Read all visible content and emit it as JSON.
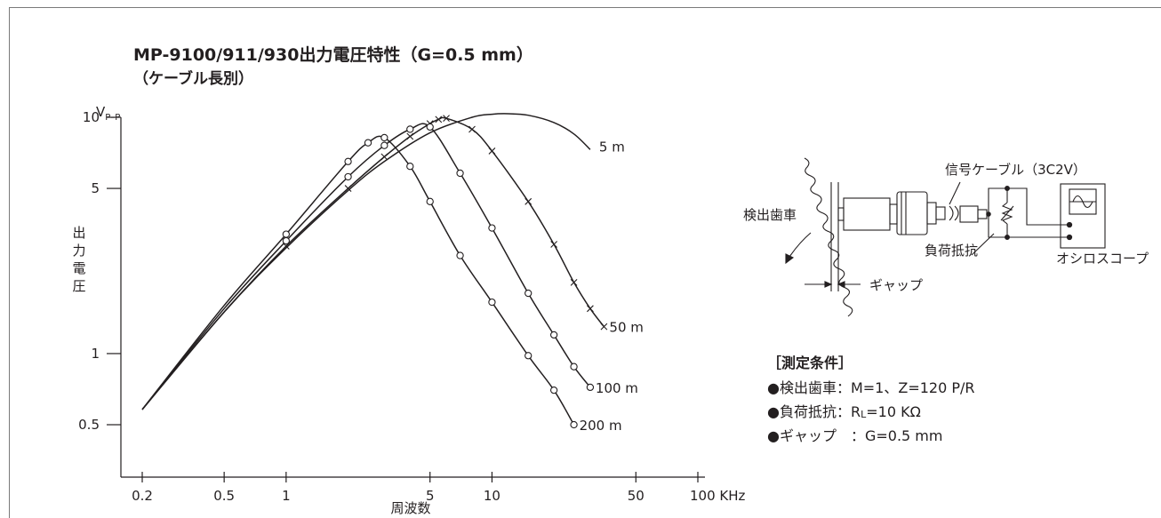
{
  "chart_data": {
    "type": "line",
    "title": "MP-9100/911/930出力電圧特性（G=0.5 mm）",
    "subtitle": "（ケーブル長別）",
    "ylabel": "出力電圧",
    "ylabel_unit": "V",
    "ylabel_unit_sub": "P–P",
    "xlabel": "周波数",
    "x_scale": "log",
    "y_scale": "log",
    "xlim": [
      0.2,
      100
    ],
    "ylim": [
      0.3,
      10
    ],
    "x_ticks": [
      {
        "v": 0.2,
        "label": "0.2"
      },
      {
        "v": 0.5,
        "label": "0.5"
      },
      {
        "v": 1,
        "label": "1"
      },
      {
        "v": 5,
        "label": "5"
      },
      {
        "v": 10,
        "label": "10"
      },
      {
        "v": 50,
        "label": "50"
      },
      {
        "v": 100,
        "label": "100 KHz"
      }
    ],
    "y_ticks": [
      {
        "v": 10,
        "label": "10"
      },
      {
        "v": 5,
        "label": "5"
      },
      {
        "v": 1,
        "label": "1"
      },
      {
        "v": 0.5,
        "label": "0.5"
      }
    ],
    "grid": false,
    "series": [
      {
        "name": "5 m",
        "marker": "none",
        "x": [
          0.2,
          0.5,
          1,
          2,
          3,
          5,
          8,
          10,
          12,
          15,
          20,
          25,
          30
        ],
        "y": [
          0.58,
          1.5,
          2.8,
          4.9,
          6.5,
          8.6,
          10.0,
          10.3,
          10.35,
          10.2,
          9.5,
          8.5,
          7.3
        ]
      },
      {
        "name": "50 m",
        "marker": "x",
        "x": [
          0.2,
          0.5,
          1,
          2,
          3,
          4,
          5,
          5.5,
          6,
          8,
          10,
          15,
          20,
          25,
          30,
          35
        ],
        "y": [
          0.58,
          1.5,
          2.85,
          5.0,
          6.8,
          8.3,
          9.4,
          9.8,
          9.9,
          8.9,
          7.2,
          4.4,
          2.9,
          2.0,
          1.55,
          1.3
        ]
      },
      {
        "name": "100 m",
        "marker": "o",
        "x": [
          0.2,
          0.5,
          1,
          2,
          3,
          4,
          5,
          7,
          10,
          15,
          20,
          25,
          30
        ],
        "y": [
          0.58,
          1.55,
          3.0,
          5.6,
          7.6,
          8.9,
          9.1,
          5.8,
          3.4,
          1.8,
          1.2,
          0.88,
          0.72
        ]
      },
      {
        "name": "200 m",
        "marker": "o",
        "x": [
          0.2,
          0.5,
          1,
          2,
          2.5,
          3,
          4,
          5,
          7,
          10,
          15,
          20,
          25
        ],
        "y": [
          0.58,
          1.6,
          3.2,
          6.5,
          7.8,
          8.2,
          6.2,
          4.4,
          2.6,
          1.65,
          0.98,
          0.7,
          0.5
        ]
      }
    ]
  },
  "diagram": {
    "label_gear": "検出歯車",
    "label_cable": "信号ケーブル（3C2V）",
    "label_resistor": "負荷抵抗",
    "label_oscilloscope": "オシロスコープ",
    "label_gap": "ギャップ"
  },
  "conditions": {
    "heading": "［測定条件］",
    "items": [
      "●検出歯車：M=1、Z=120 P/R",
      "●負荷抵抗：R",
      "●ギャップ　：G=0.5 mm"
    ],
    "resistor_sub": "L",
    "resistor_rest": "=10 KΩ"
  }
}
